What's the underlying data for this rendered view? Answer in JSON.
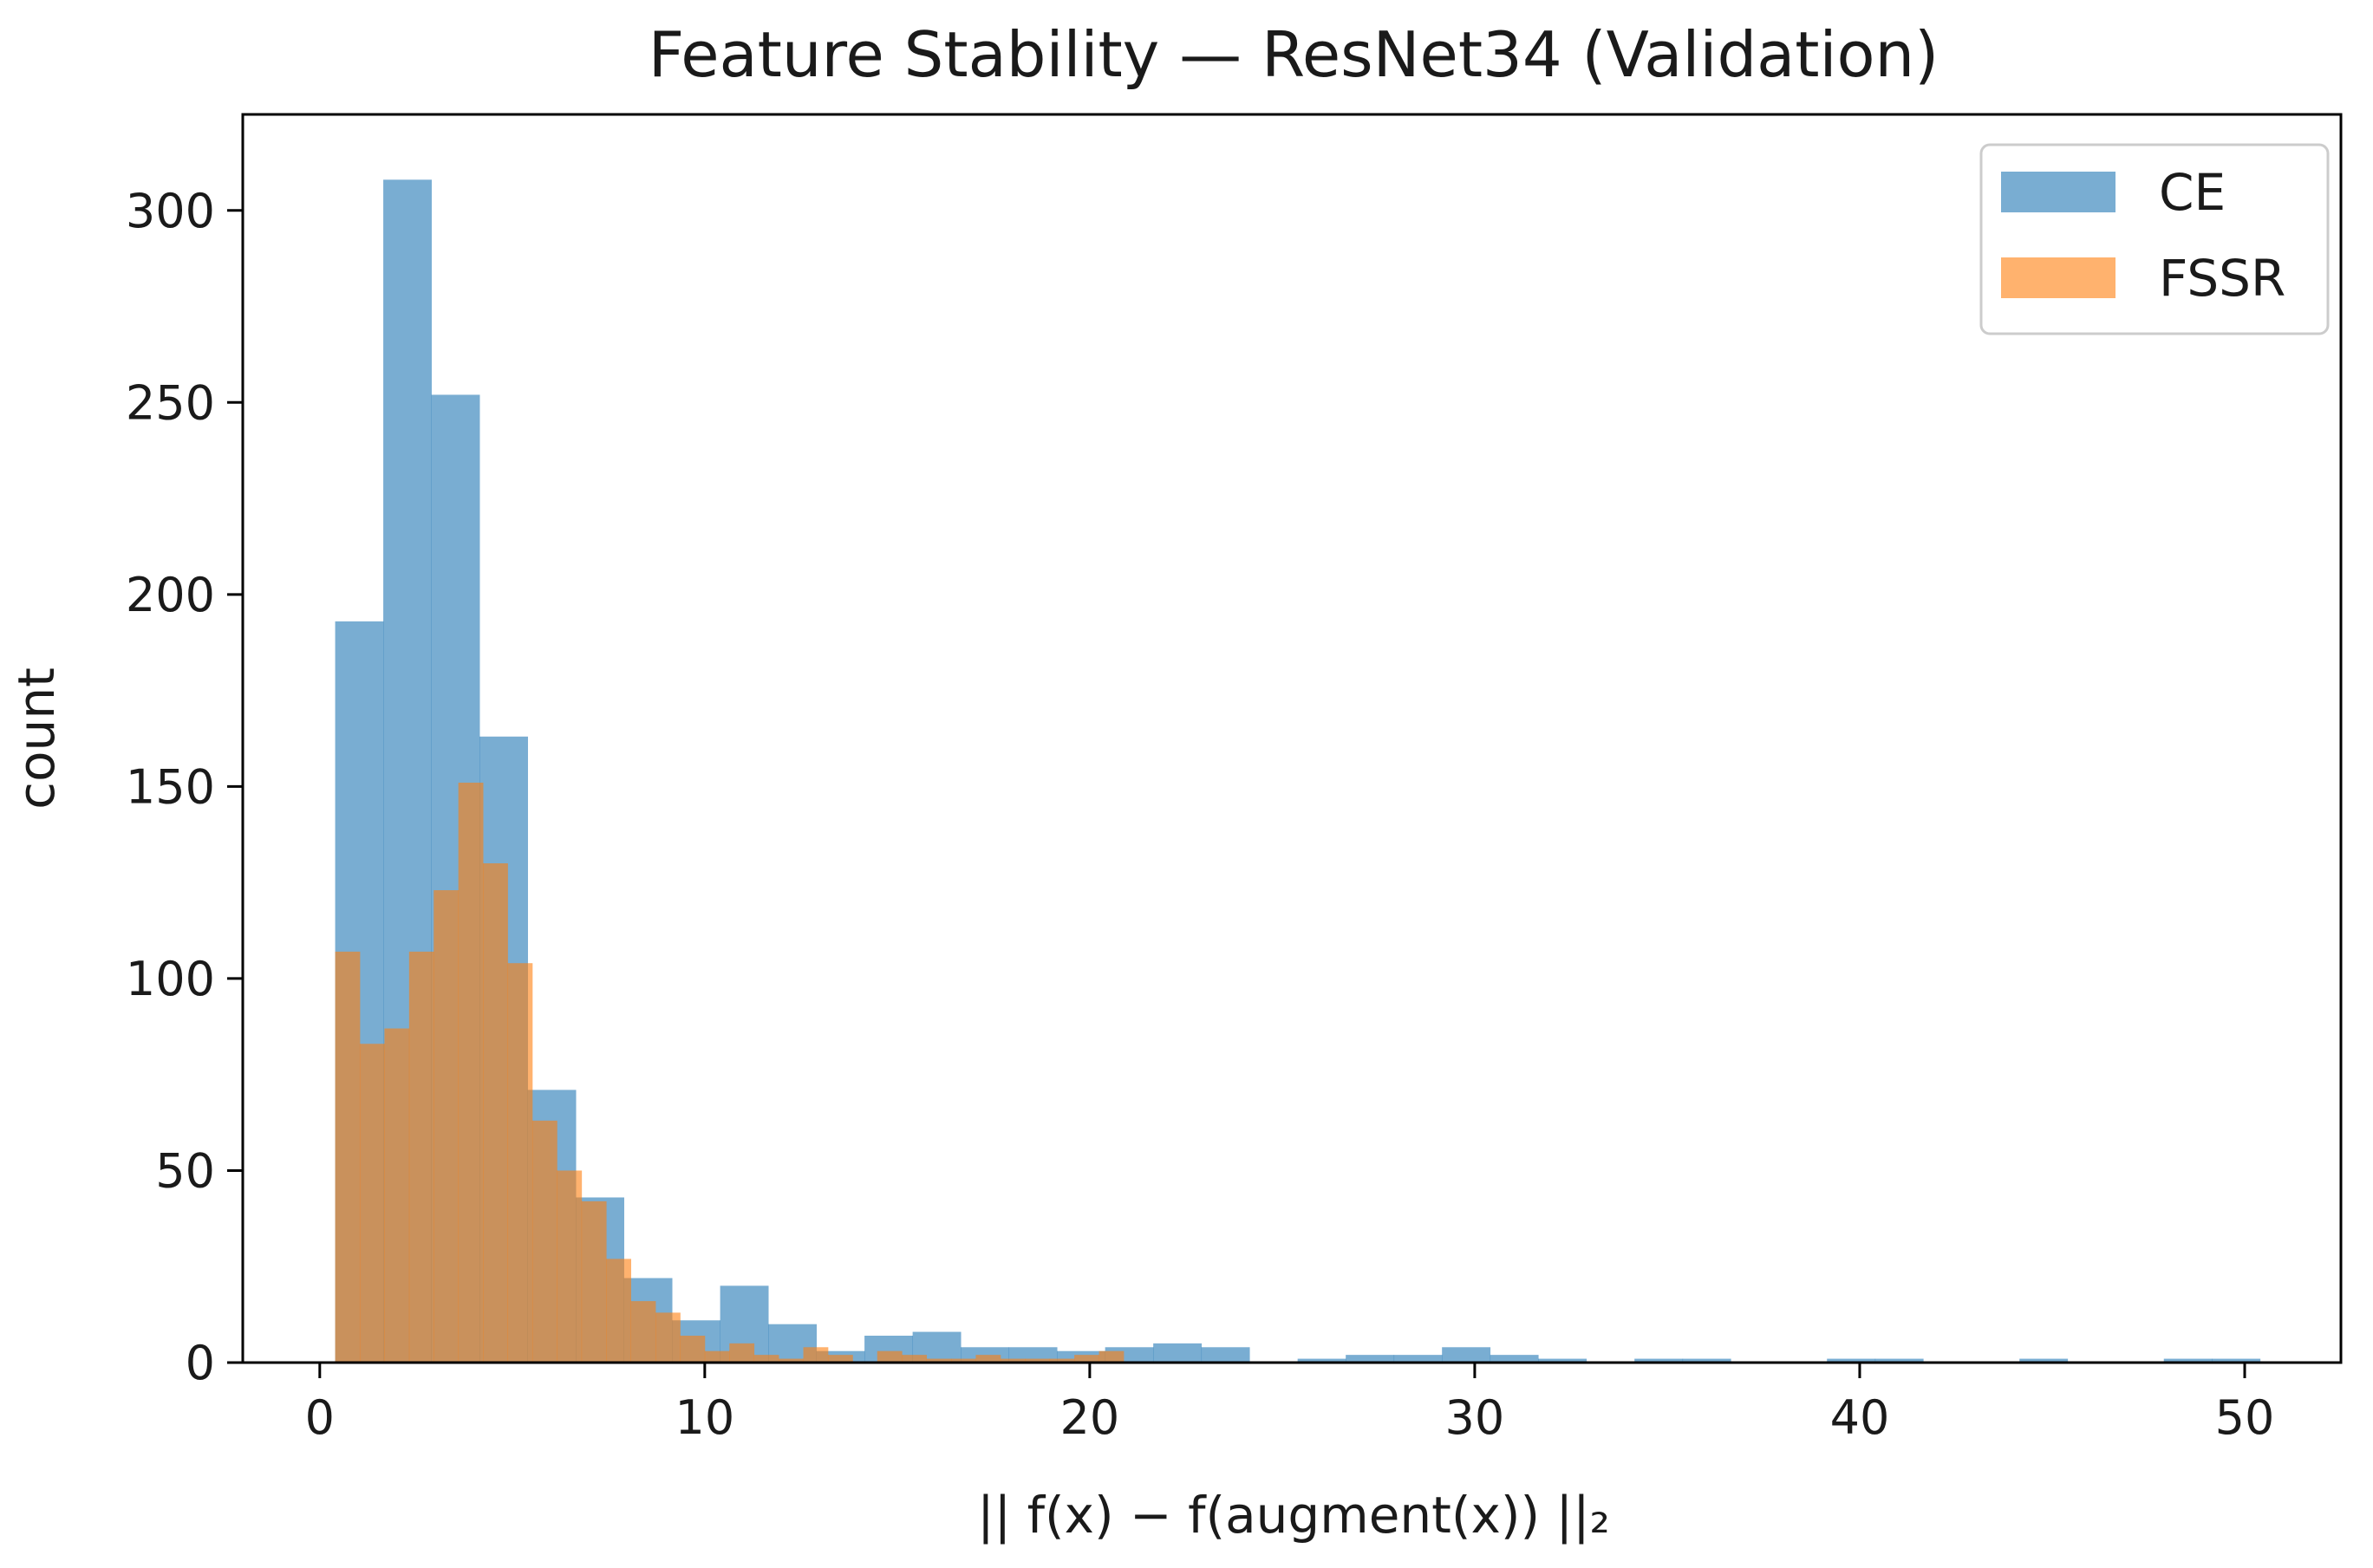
{
  "chart_data": {
    "type": "bar",
    "title": "Feature Stability — ResNet34 (Validation)",
    "xlabel": "|| f(x) − f(augment(x)) ||₂",
    "ylabel": "count",
    "xlim": [
      -2,
      52.5
    ],
    "ylim": [
      0,
      325
    ],
    "xticks": [
      0,
      10,
      20,
      30,
      40,
      50
    ],
    "yticks": [
      0,
      50,
      100,
      150,
      200,
      250,
      300
    ],
    "legend_position": "top-right",
    "grid": false,
    "series": [
      {
        "name": "CE",
        "color": "#1f77b4",
        "alpha": 0.6,
        "bin_edges": [
          0.4,
          1.65,
          2.9,
          4.15,
          5.4,
          6.65,
          7.9,
          9.15,
          10.4,
          11.65,
          12.9,
          14.15,
          15.4,
          16.65,
          17.9,
          19.15,
          20.4,
          21.65,
          22.9,
          24.15,
          25.4,
          26.65,
          27.9,
          29.15,
          30.4,
          31.65,
          32.9,
          34.15,
          35.4,
          36.65,
          37.9,
          39.15,
          40.4,
          41.65,
          42.9,
          44.15,
          45.4,
          46.65,
          47.9,
          49.15,
          50.4
        ],
        "values": [
          193,
          308,
          252,
          163,
          71,
          43,
          22,
          11,
          20,
          10,
          3,
          7,
          8,
          4,
          4,
          3,
          4,
          5,
          4,
          0,
          1,
          2,
          2,
          4,
          2,
          1,
          0,
          1,
          1,
          0,
          0,
          1,
          1,
          0,
          0,
          1,
          0,
          0,
          1,
          1
        ]
      },
      {
        "name": "FSSR",
        "color": "#ff7f0e",
        "alpha": 0.6,
        "bin_edges": [
          0.4,
          1.04,
          1.68,
          2.32,
          2.96,
          3.6,
          4.24,
          4.88,
          5.52,
          6.16,
          6.8,
          7.44,
          8.08,
          8.72,
          9.36,
          10.0,
          10.64,
          11.28,
          11.92,
          12.56,
          13.2,
          13.84,
          14.48,
          15.12,
          15.76,
          16.4,
          17.04,
          17.68,
          18.32,
          18.96,
          19.6,
          20.24,
          20.88
        ],
        "values": [
          107,
          83,
          87,
          107,
          123,
          151,
          130,
          104,
          63,
          50,
          42,
          27,
          16,
          13,
          7,
          3,
          5,
          2,
          1,
          4,
          2,
          0,
          3,
          2,
          1,
          1,
          2,
          1,
          1,
          1,
          2,
          3
        ]
      }
    ]
  }
}
